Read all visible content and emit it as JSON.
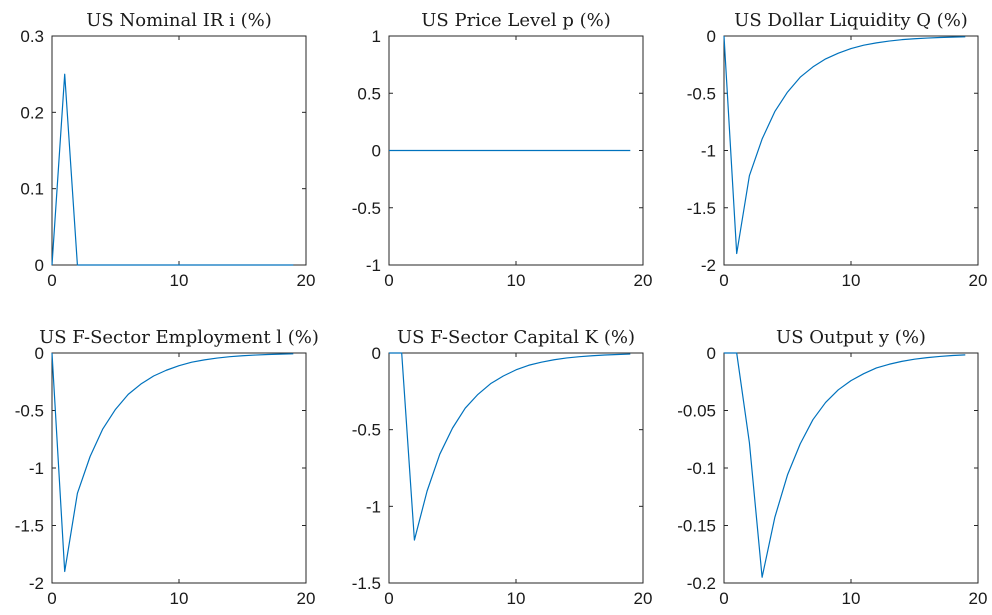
{
  "style": {
    "line_color": "#0072BD",
    "axis_color": "#262626",
    "background": "#ffffff"
  },
  "chart_data": [
    {
      "type": "line",
      "title": "US Nominal IR i (%)",
      "xlabel": "",
      "ylabel": "",
      "xlim": [
        0,
        20
      ],
      "ylim": [
        0,
        0.3
      ],
      "xticks": [
        0,
        10,
        20
      ],
      "xtick_labels": [
        "0",
        "10",
        "20"
      ],
      "yticks": [
        0,
        0.1,
        0.2,
        0.3
      ],
      "ytick_labels": [
        "0",
        "0.1",
        "0.2",
        "0.3"
      ],
      "grid": false,
      "x": [
        0,
        1,
        2,
        3,
        4,
        5,
        6,
        7,
        8,
        9,
        10,
        11,
        12,
        13,
        14,
        15,
        16,
        17,
        18,
        19
      ],
      "y": [
        0,
        0.25,
        0,
        0,
        0,
        0,
        0,
        0,
        0,
        0,
        0,
        0,
        0,
        0,
        0,
        0,
        0,
        0,
        0,
        0
      ]
    },
    {
      "type": "line",
      "title": "US Price Level p (%)",
      "xlabel": "",
      "ylabel": "",
      "xlim": [
        0,
        20
      ],
      "ylim": [
        -1,
        1
      ],
      "xticks": [
        0,
        10,
        20
      ],
      "xtick_labels": [
        "0",
        "10",
        "20"
      ],
      "yticks": [
        -1,
        -0.5,
        0,
        0.5,
        1
      ],
      "ytick_labels": [
        "-1",
        "-0.5",
        "0",
        "0.5",
        "1"
      ],
      "grid": false,
      "x": [
        0,
        1,
        2,
        3,
        4,
        5,
        6,
        7,
        8,
        9,
        10,
        11,
        12,
        13,
        14,
        15,
        16,
        17,
        18,
        19
      ],
      "y": [
        0,
        0,
        0,
        0,
        0,
        0,
        0,
        0,
        0,
        0,
        0,
        0,
        0,
        0,
        0,
        0,
        0,
        0,
        0,
        0
      ]
    },
    {
      "type": "line",
      "title": "US Dollar Liquidity Q (%)",
      "xlabel": "",
      "ylabel": "",
      "xlim": [
        0,
        20
      ],
      "ylim": [
        -2,
        0
      ],
      "xticks": [
        0,
        10,
        20
      ],
      "xtick_labels": [
        "0",
        "10",
        "20"
      ],
      "yticks": [
        -2,
        -1.5,
        -1,
        -0.5,
        0
      ],
      "ytick_labels": [
        "-2",
        "-1.5",
        "-1",
        "-0.5",
        "0"
      ],
      "grid": false,
      "x": [
        0,
        1,
        2,
        3,
        4,
        5,
        6,
        7,
        8,
        9,
        10,
        11,
        12,
        13,
        14,
        15,
        16,
        17,
        18,
        19
      ],
      "y": [
        0,
        -1.9,
        -1.22,
        -0.9,
        -0.66,
        -0.49,
        -0.36,
        -0.27,
        -0.2,
        -0.15,
        -0.11,
        -0.08,
        -0.06,
        -0.044,
        -0.032,
        -0.024,
        -0.018,
        -0.013,
        -0.01,
        -0.007
      ]
    },
    {
      "type": "line",
      "title": "US F-Sector Employment l (%)",
      "xlabel": "",
      "ylabel": "",
      "xlim": [
        0,
        20
      ],
      "ylim": [
        -2,
        0
      ],
      "xticks": [
        0,
        10,
        20
      ],
      "xtick_labels": [
        "0",
        "10",
        "20"
      ],
      "yticks": [
        -2,
        -1.5,
        -1,
        -0.5,
        0
      ],
      "ytick_labels": [
        "-2",
        "-1.5",
        "-1",
        "-0.5",
        "0"
      ],
      "grid": false,
      "x": [
        0,
        1,
        2,
        3,
        4,
        5,
        6,
        7,
        8,
        9,
        10,
        11,
        12,
        13,
        14,
        15,
        16,
        17,
        18,
        19
      ],
      "y": [
        0,
        -1.9,
        -1.22,
        -0.9,
        -0.66,
        -0.49,
        -0.36,
        -0.27,
        -0.2,
        -0.15,
        -0.11,
        -0.08,
        -0.06,
        -0.044,
        -0.032,
        -0.024,
        -0.018,
        -0.013,
        -0.01,
        -0.007
      ]
    },
    {
      "type": "line",
      "title": "US F-Sector Capital K (%)",
      "xlabel": "",
      "ylabel": "",
      "xlim": [
        0,
        20
      ],
      "ylim": [
        -1.5,
        0
      ],
      "xticks": [
        0,
        10,
        20
      ],
      "xtick_labels": [
        "0",
        "10",
        "20"
      ],
      "yticks": [
        -1.5,
        -1,
        -0.5,
        0
      ],
      "ytick_labels": [
        "-1.5",
        "-1",
        "-0.5",
        "0"
      ],
      "grid": false,
      "x": [
        0,
        1,
        2,
        3,
        4,
        5,
        6,
        7,
        8,
        9,
        10,
        11,
        12,
        13,
        14,
        15,
        16,
        17,
        18,
        19
      ],
      "y": [
        0,
        0,
        -1.22,
        -0.9,
        -0.66,
        -0.49,
        -0.36,
        -0.27,
        -0.2,
        -0.15,
        -0.11,
        -0.08,
        -0.06,
        -0.044,
        -0.032,
        -0.024,
        -0.018,
        -0.013,
        -0.01,
        -0.007
      ]
    },
    {
      "type": "line",
      "title": "US Output y (%)",
      "xlabel": "",
      "ylabel": "",
      "xlim": [
        0,
        20
      ],
      "ylim": [
        -0.2,
        0
      ],
      "xticks": [
        0,
        10,
        20
      ],
      "xtick_labels": [
        "0",
        "10",
        "20"
      ],
      "yticks": [
        -0.2,
        -0.15,
        -0.1,
        -0.05,
        0
      ],
      "ytick_labels": [
        "-0.2",
        "-0.15",
        "-0.1",
        "-0.05",
        "0"
      ],
      "grid": false,
      "x": [
        0,
        1,
        2,
        3,
        4,
        5,
        6,
        7,
        8,
        9,
        10,
        11,
        12,
        13,
        14,
        15,
        16,
        17,
        18,
        19
      ],
      "y": [
        0,
        0,
        -0.078,
        -0.195,
        -0.143,
        -0.106,
        -0.079,
        -0.058,
        -0.043,
        -0.032,
        -0.024,
        -0.018,
        -0.013,
        -0.0098,
        -0.0073,
        -0.0054,
        -0.004,
        -0.003,
        -0.0022,
        -0.0016
      ]
    }
  ]
}
